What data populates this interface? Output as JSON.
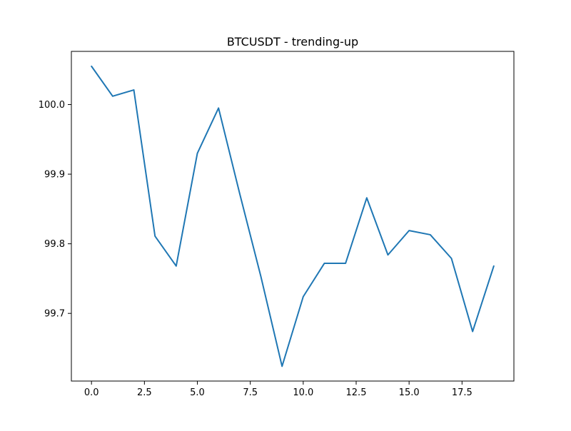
{
  "chart_data": {
    "type": "line",
    "title": "BTCUSDT - trending-up",
    "xlabel": "",
    "ylabel": "",
    "xlim": [
      -0.95,
      19.95
    ],
    "ylim": [
      99.6028,
      100.0764
    ],
    "grid": false,
    "legend": "none",
    "x_ticks": [
      0.0,
      2.5,
      5.0,
      7.5,
      10.0,
      12.5,
      15.0,
      17.5
    ],
    "x_tick_labels": [
      "0.0",
      "2.5",
      "5.0",
      "7.5",
      "10.0",
      "12.5",
      "15.0",
      "17.5"
    ],
    "y_ticks": [
      99.7,
      99.8,
      99.9,
      100.0
    ],
    "y_tick_labels": [
      "99.7",
      "99.8",
      "99.9",
      "100.0"
    ],
    "series": [
      {
        "color": "#1f77b4",
        "x": [
          0,
          1,
          2,
          3,
          4,
          5,
          6,
          7,
          8,
          9,
          10,
          11,
          12,
          13,
          14,
          15,
          16,
          17,
          18,
          19
        ],
        "values": [
          100.055,
          100.012,
          100.021,
          99.811,
          99.768,
          99.93,
          99.995,
          99.872,
          99.753,
          99.624,
          99.724,
          99.772,
          99.772,
          99.866,
          99.784,
          99.819,
          99.813,
          99.779,
          99.674,
          99.768
        ]
      }
    ]
  }
}
